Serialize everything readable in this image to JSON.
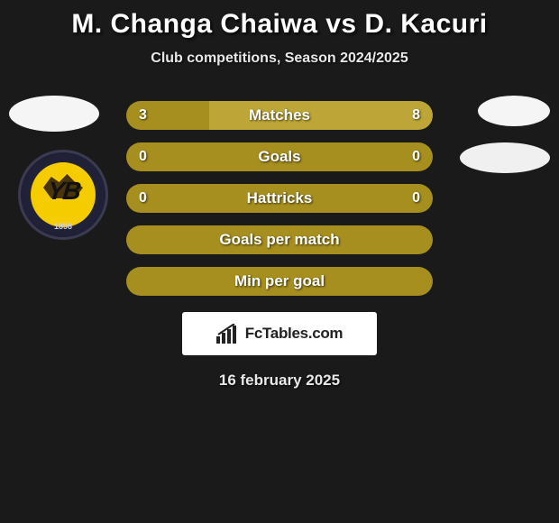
{
  "title": "M. Changa Chaiwa vs D. Kacuri",
  "subtitle": "Club competitions, Season 2024/2025",
  "date": "16 february 2025",
  "attribution": "FcTables.com",
  "colors": {
    "background": "#1a1a1a",
    "bar_primary": "#a68e1f",
    "bar_secondary": "#bda637",
    "bar_full": "#a68e1f",
    "text": "#ffffff",
    "badge_yellow": "#f5cc00",
    "logo_placeholder": "#f0f0f0"
  },
  "badge": {
    "monogram": "YB",
    "year": "1898"
  },
  "bars": [
    {
      "label": "Matches",
      "left_value": "3",
      "right_value": "8",
      "left_pct": 27,
      "right_pct": 73,
      "left_color": "#a68e1f",
      "right_color": "#bda637"
    },
    {
      "label": "Goals",
      "left_value": "0",
      "right_value": "0",
      "left_pct": 50,
      "right_pct": 50,
      "left_color": "#a68e1f",
      "right_color": "#a68e1f"
    },
    {
      "label": "Hattricks",
      "left_value": "0",
      "right_value": "0",
      "left_pct": 50,
      "right_pct": 50,
      "left_color": "#a68e1f",
      "right_color": "#a68e1f"
    },
    {
      "label": "Goals per match",
      "left_value": "",
      "right_value": "",
      "left_pct": 100,
      "right_pct": 0,
      "left_color": "#a68e1f",
      "right_color": "#a68e1f"
    },
    {
      "label": "Min per goal",
      "left_value": "",
      "right_value": "",
      "left_pct": 100,
      "right_pct": 0,
      "left_color": "#a68e1f",
      "right_color": "#a68e1f"
    }
  ]
}
